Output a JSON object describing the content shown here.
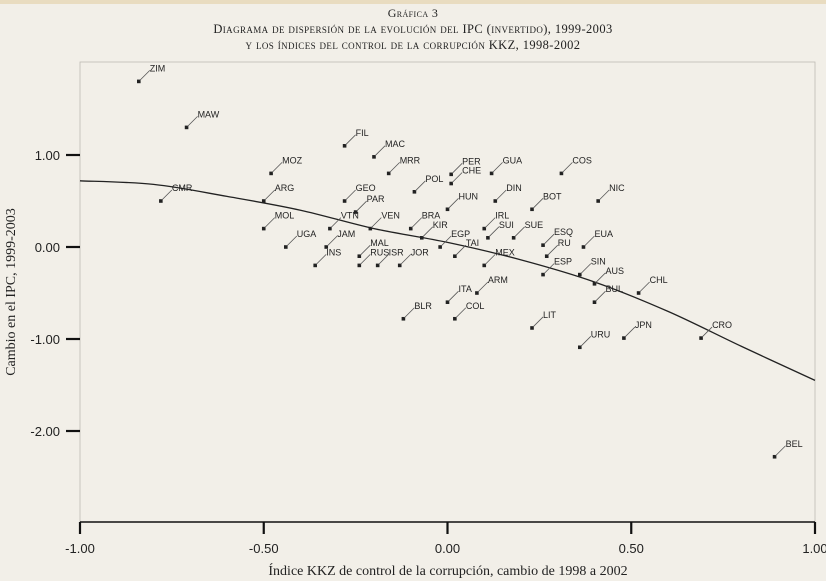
{
  "figure": {
    "label": "Gráfica 3",
    "title_line1": "Diagrama de dispersión de la evolución del IPC (invertido), 1999-2003",
    "title_line2": "y los índices del control de la corrupción KKZ, 1998-2002"
  },
  "chart_data": {
    "type": "scatter",
    "title": "Diagrama de dispersión de la evolución del IPC (invertido), 1999-2003 y los índices del control de la corrupción KKZ, 1998-2002",
    "xlabel": "Índice KKZ de control de la corrupción, cambio de 1998 a 2002",
    "ylabel": "Cambio en el IPC, 1999-2003",
    "xlim": [
      -1.0,
      1.0
    ],
    "ylim": [
      -2.6,
      2.05
    ],
    "xticks": [
      -1.0,
      -0.5,
      0.0,
      0.5,
      1.0
    ],
    "xtick_labels": [
      "-1.00",
      "-0.50",
      "0.00",
      "0.50",
      "1.00"
    ],
    "yticks": [
      1.0,
      0.0,
      -1.0,
      -2.0
    ],
    "ytick_labels": [
      "1.00",
      "0.00",
      "-1.00",
      "-2.00"
    ],
    "grid": false,
    "points": [
      {
        "label": "ZIM",
        "x": -0.84,
        "y": 1.8
      },
      {
        "label": "MAW",
        "x": -0.71,
        "y": 1.3
      },
      {
        "label": "FIL",
        "x": -0.28,
        "y": 1.1
      },
      {
        "label": "MAC",
        "x": -0.2,
        "y": 0.98
      },
      {
        "label": "MOZ",
        "x": -0.48,
        "y": 0.8
      },
      {
        "label": "MRR",
        "x": -0.16,
        "y": 0.8
      },
      {
        "label": "PER",
        "x": 0.01,
        "y": 0.79
      },
      {
        "label": "GUA",
        "x": 0.12,
        "y": 0.8
      },
      {
        "label": "COS",
        "x": 0.31,
        "y": 0.8
      },
      {
        "label": "CHE",
        "x": 0.01,
        "y": 0.69
      },
      {
        "label": "POL",
        "x": -0.09,
        "y": 0.6
      },
      {
        "label": "CMR",
        "x": -0.78,
        "y": 0.5
      },
      {
        "label": "ARG",
        "x": -0.5,
        "y": 0.5
      },
      {
        "label": "GEO",
        "x": -0.28,
        "y": 0.5
      },
      {
        "label": "DIN",
        "x": 0.13,
        "y": 0.5
      },
      {
        "label": "NIC",
        "x": 0.41,
        "y": 0.5
      },
      {
        "label": "PAR",
        "x": -0.25,
        "y": 0.38
      },
      {
        "label": "HUN",
        "x": 0.0,
        "y": 0.41
      },
      {
        "label": "BOT",
        "x": 0.23,
        "y": 0.41
      },
      {
        "label": "MOL",
        "x": -0.5,
        "y": 0.2
      },
      {
        "label": "VTN",
        "x": -0.32,
        "y": 0.2
      },
      {
        "label": "VEN",
        "x": -0.21,
        "y": 0.2
      },
      {
        "label": "BRA",
        "x": -0.1,
        "y": 0.2
      },
      {
        "label": "IRL",
        "x": 0.1,
        "y": 0.2
      },
      {
        "label": "EUA",
        "x": 0.37,
        "y": 0.0
      },
      {
        "label": "KIR",
        "x": -0.07,
        "y": 0.1
      },
      {
        "label": "SUI",
        "x": 0.11,
        "y": 0.1
      },
      {
        "label": "SUE",
        "x": 0.18,
        "y": 0.1
      },
      {
        "label": "ESQ",
        "x": 0.26,
        "y": 0.02
      },
      {
        "label": "EGP",
        "x": -0.02,
        "y": 0.0
      },
      {
        "label": "TAI",
        "x": 0.02,
        "y": -0.1
      },
      {
        "label": "RU",
        "x": 0.27,
        "y": -0.1
      },
      {
        "label": "UGA",
        "x": -0.44,
        "y": 0.0
      },
      {
        "label": "JAM",
        "x": -0.33,
        "y": 0.0
      },
      {
        "label": "MAL",
        "x": -0.24,
        "y": -0.1
      },
      {
        "label": "INS",
        "x": -0.36,
        "y": -0.2
      },
      {
        "label": "RUS",
        "x": -0.24,
        "y": -0.2
      },
      {
        "label": "ISR",
        "x": -0.19,
        "y": -0.2
      },
      {
        "label": "JOR",
        "x": -0.13,
        "y": -0.2
      },
      {
        "label": "MEX",
        "x": 0.1,
        "y": -0.2
      },
      {
        "label": "ESP",
        "x": 0.26,
        "y": -0.3
      },
      {
        "label": "SIN",
        "x": 0.36,
        "y": -0.3
      },
      {
        "label": "AUS",
        "x": 0.4,
        "y": -0.4
      },
      {
        "label": "CHL",
        "x": 0.52,
        "y": -0.5
      },
      {
        "label": "BUL",
        "x": 0.4,
        "y": -0.6
      },
      {
        "label": "ARM",
        "x": 0.08,
        "y": -0.5
      },
      {
        "label": "ITA",
        "x": 0.0,
        "y": -0.6
      },
      {
        "label": "BLR",
        "x": -0.12,
        "y": -0.78
      },
      {
        "label": "COL",
        "x": 0.02,
        "y": -0.78
      },
      {
        "label": "LIT",
        "x": 0.23,
        "y": -0.88
      },
      {
        "label": "URU",
        "x": 0.36,
        "y": -1.09
      },
      {
        "label": "JPN",
        "x": 0.48,
        "y": -0.99
      },
      {
        "label": "CRO",
        "x": 0.69,
        "y": -0.99
      },
      {
        "label": "BEL",
        "x": 0.89,
        "y": -2.28
      }
    ],
    "fit_line": {
      "type": "curve",
      "points": [
        [
          -1.0,
          0.72
        ],
        [
          -0.8,
          0.68
        ],
        [
          -0.6,
          0.55
        ],
        [
          -0.4,
          0.4
        ],
        [
          -0.2,
          0.2
        ],
        [
          0.0,
          0.05
        ],
        [
          0.2,
          -0.14
        ],
        [
          0.4,
          -0.38
        ],
        [
          0.6,
          -0.7
        ],
        [
          0.8,
          -1.08
        ],
        [
          1.0,
          -1.45
        ]
      ]
    }
  }
}
